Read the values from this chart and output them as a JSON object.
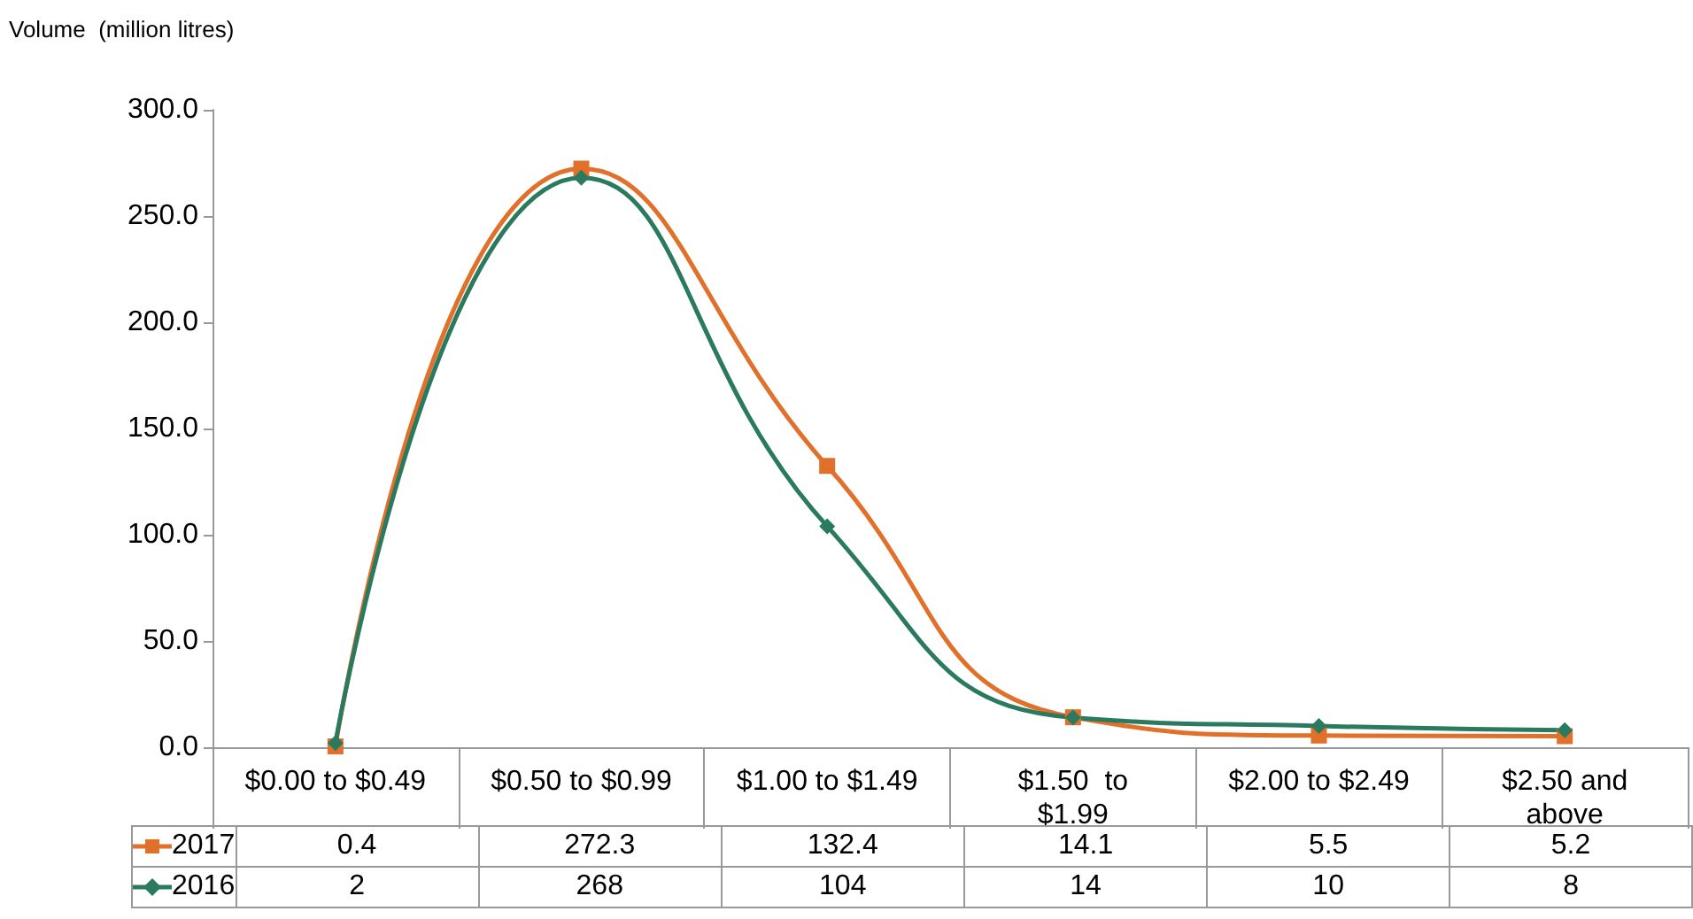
{
  "chart_data": {
    "type": "line",
    "ylabel": "Volume  (million litres)",
    "categories": [
      "$0.00 to $0.49",
      "$0.50 to $0.99",
      "$1.00 to $1.49",
      "$1.50  to\n$1.99",
      "$2.00 to $2.49",
      "$2.50 and\nabove"
    ],
    "series": [
      {
        "name": "2017",
        "color": "#e0702a",
        "marker": "square",
        "values": [
          0.4,
          272.3,
          132.4,
          14.1,
          5.5,
          5.2
        ]
      },
      {
        "name": "2016",
        "color": "#2a7a60",
        "marker": "diamond",
        "values": [
          2,
          268,
          104,
          14,
          10,
          8
        ]
      }
    ],
    "ylim": [
      0,
      300
    ],
    "yticks": [
      {
        "value": 0,
        "label": "0.0"
      },
      {
        "value": 50,
        "label": "50.0"
      },
      {
        "value": 100,
        "label": "100.0"
      },
      {
        "value": 150,
        "label": "150.0"
      },
      {
        "value": 200,
        "label": "200.0"
      },
      {
        "value": 250,
        "label": "250.0"
      },
      {
        "value": 300,
        "label": "300.0"
      }
    ],
    "grid": false,
    "legend": "bottom",
    "data_labels": true
  }
}
